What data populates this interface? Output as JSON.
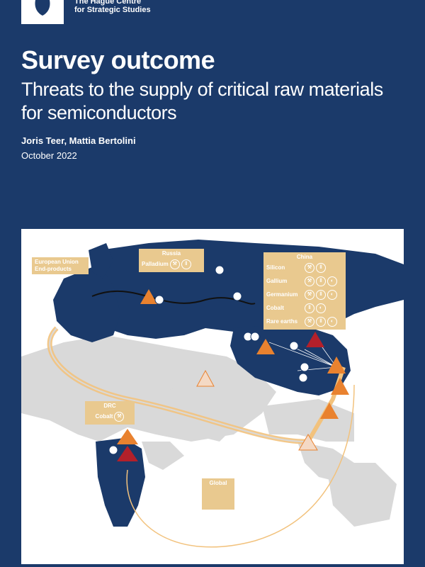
{
  "header": {
    "org_line1": "The Hague Centre",
    "org_line2": "for Strategic Studies"
  },
  "cover": {
    "title": "Survey outcome",
    "subtitle": "Threats to the supply of critical raw materials for semiconductors",
    "authors": "Joris Teer, Mattia Bertolini",
    "date": "October 2022"
  },
  "map": {
    "eu": {
      "line1": "European Union",
      "line2": "End-products"
    },
    "russia": {
      "title": "Russia",
      "item": "Palladium"
    },
    "china": {
      "title": "China",
      "items": [
        "Silicon",
        "Gallium",
        "Germanium",
        "Cobalt",
        "Rare earths"
      ]
    },
    "drc": {
      "title": "DRC",
      "item": "Cobalt"
    },
    "global": {
      "title": "Global"
    }
  },
  "colors": {
    "background": "#1b3a6a",
    "land_highlight": "#1b3a6a",
    "land_other": "#d9d9d9",
    "label": "#e9c98f",
    "route": "#f2c27d",
    "warning_orange": "#e9822f",
    "warning_red": "#b3202a"
  },
  "icons": [
    "pickaxe-icon",
    "pause-icon",
    "scale-icon",
    "warning-triangle-icon",
    "fire-icon"
  ]
}
